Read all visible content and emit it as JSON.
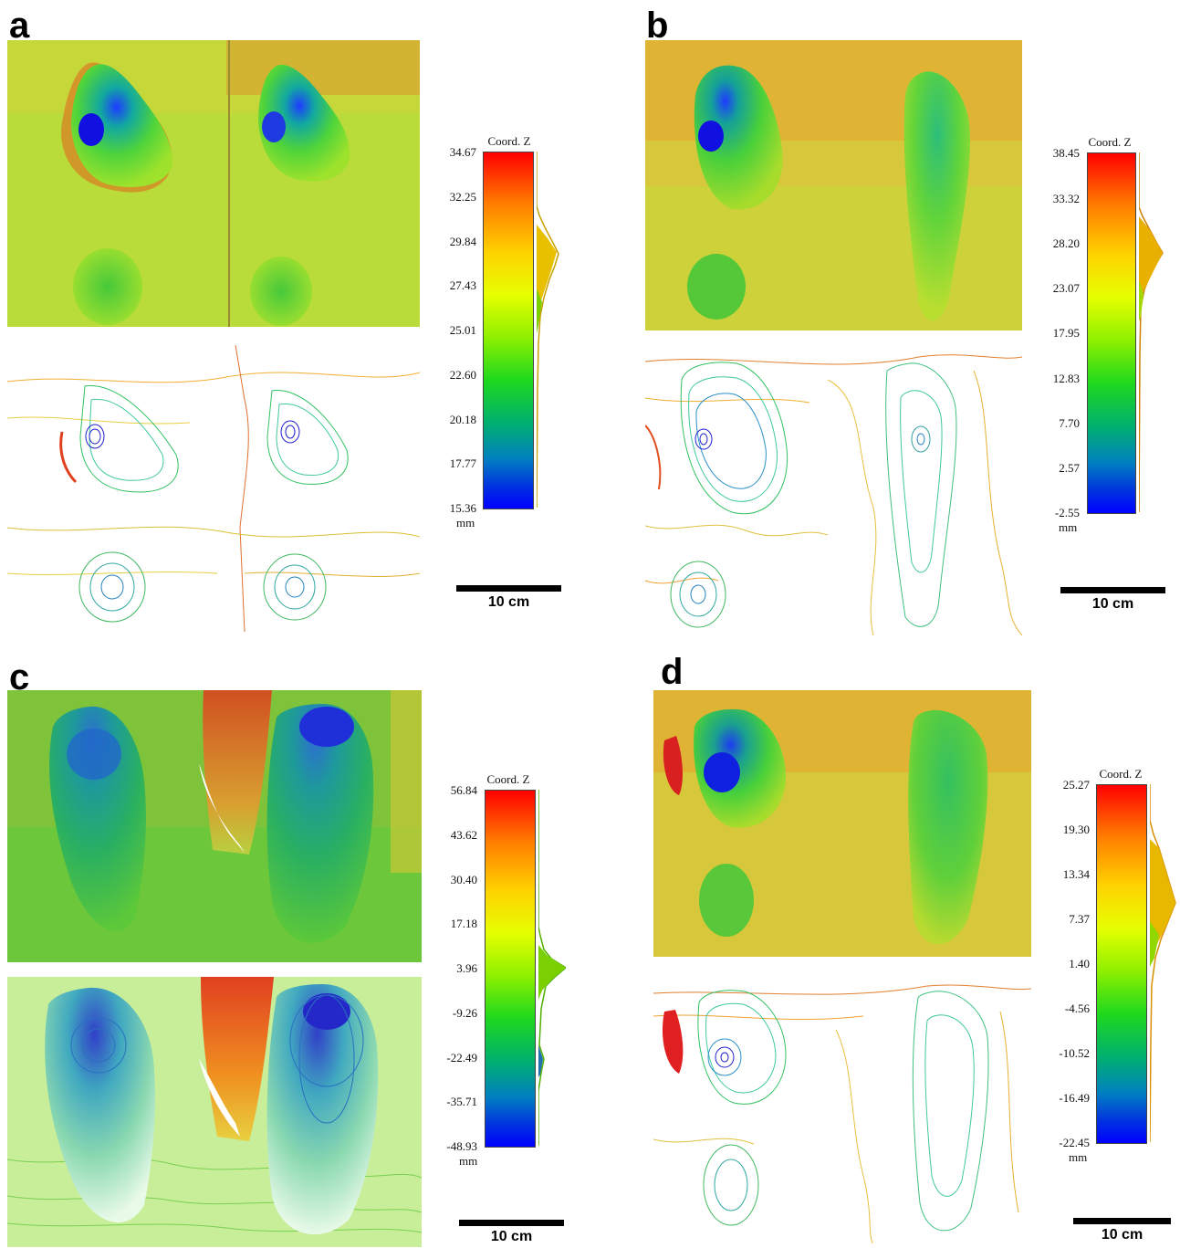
{
  "panels": [
    {
      "letter": "a",
      "colorbar": {
        "title": "Coord. Z",
        "ticks": [
          "34.67",
          "32.25",
          "29.84",
          "27.43",
          "25.01",
          "22.60",
          "20.18",
          "17.77",
          "15.36"
        ],
        "unit": "mm"
      },
      "scale_label": "10 cm"
    },
    {
      "letter": "b",
      "colorbar": {
        "title": "Coord. Z",
        "ticks": [
          "38.45",
          "33.32",
          "28.20",
          "23.07",
          "17.95",
          "12.83",
          "7.70",
          "2.57",
          "-2.55"
        ],
        "unit": "mm"
      },
      "scale_label": "10 cm"
    },
    {
      "letter": "c",
      "colorbar": {
        "title": "Coord. Z",
        "ticks": [
          "56.84",
          "43.62",
          "30.40",
          "17.18",
          "3.96",
          "-9.26",
          "-22.49",
          "-35.71",
          "-48.93"
        ],
        "unit": "mm"
      },
      "scale_label": "10 cm"
    },
    {
      "letter": "d",
      "colorbar": {
        "title": "Coord. Z",
        "ticks": [
          "25.27",
          "19.30",
          "13.34",
          "7.37",
          "1.40",
          "-4.56",
          "-10.52",
          "-16.49",
          "-22.45"
        ],
        "unit": "mm"
      },
      "scale_label": "10 cm"
    }
  ]
}
